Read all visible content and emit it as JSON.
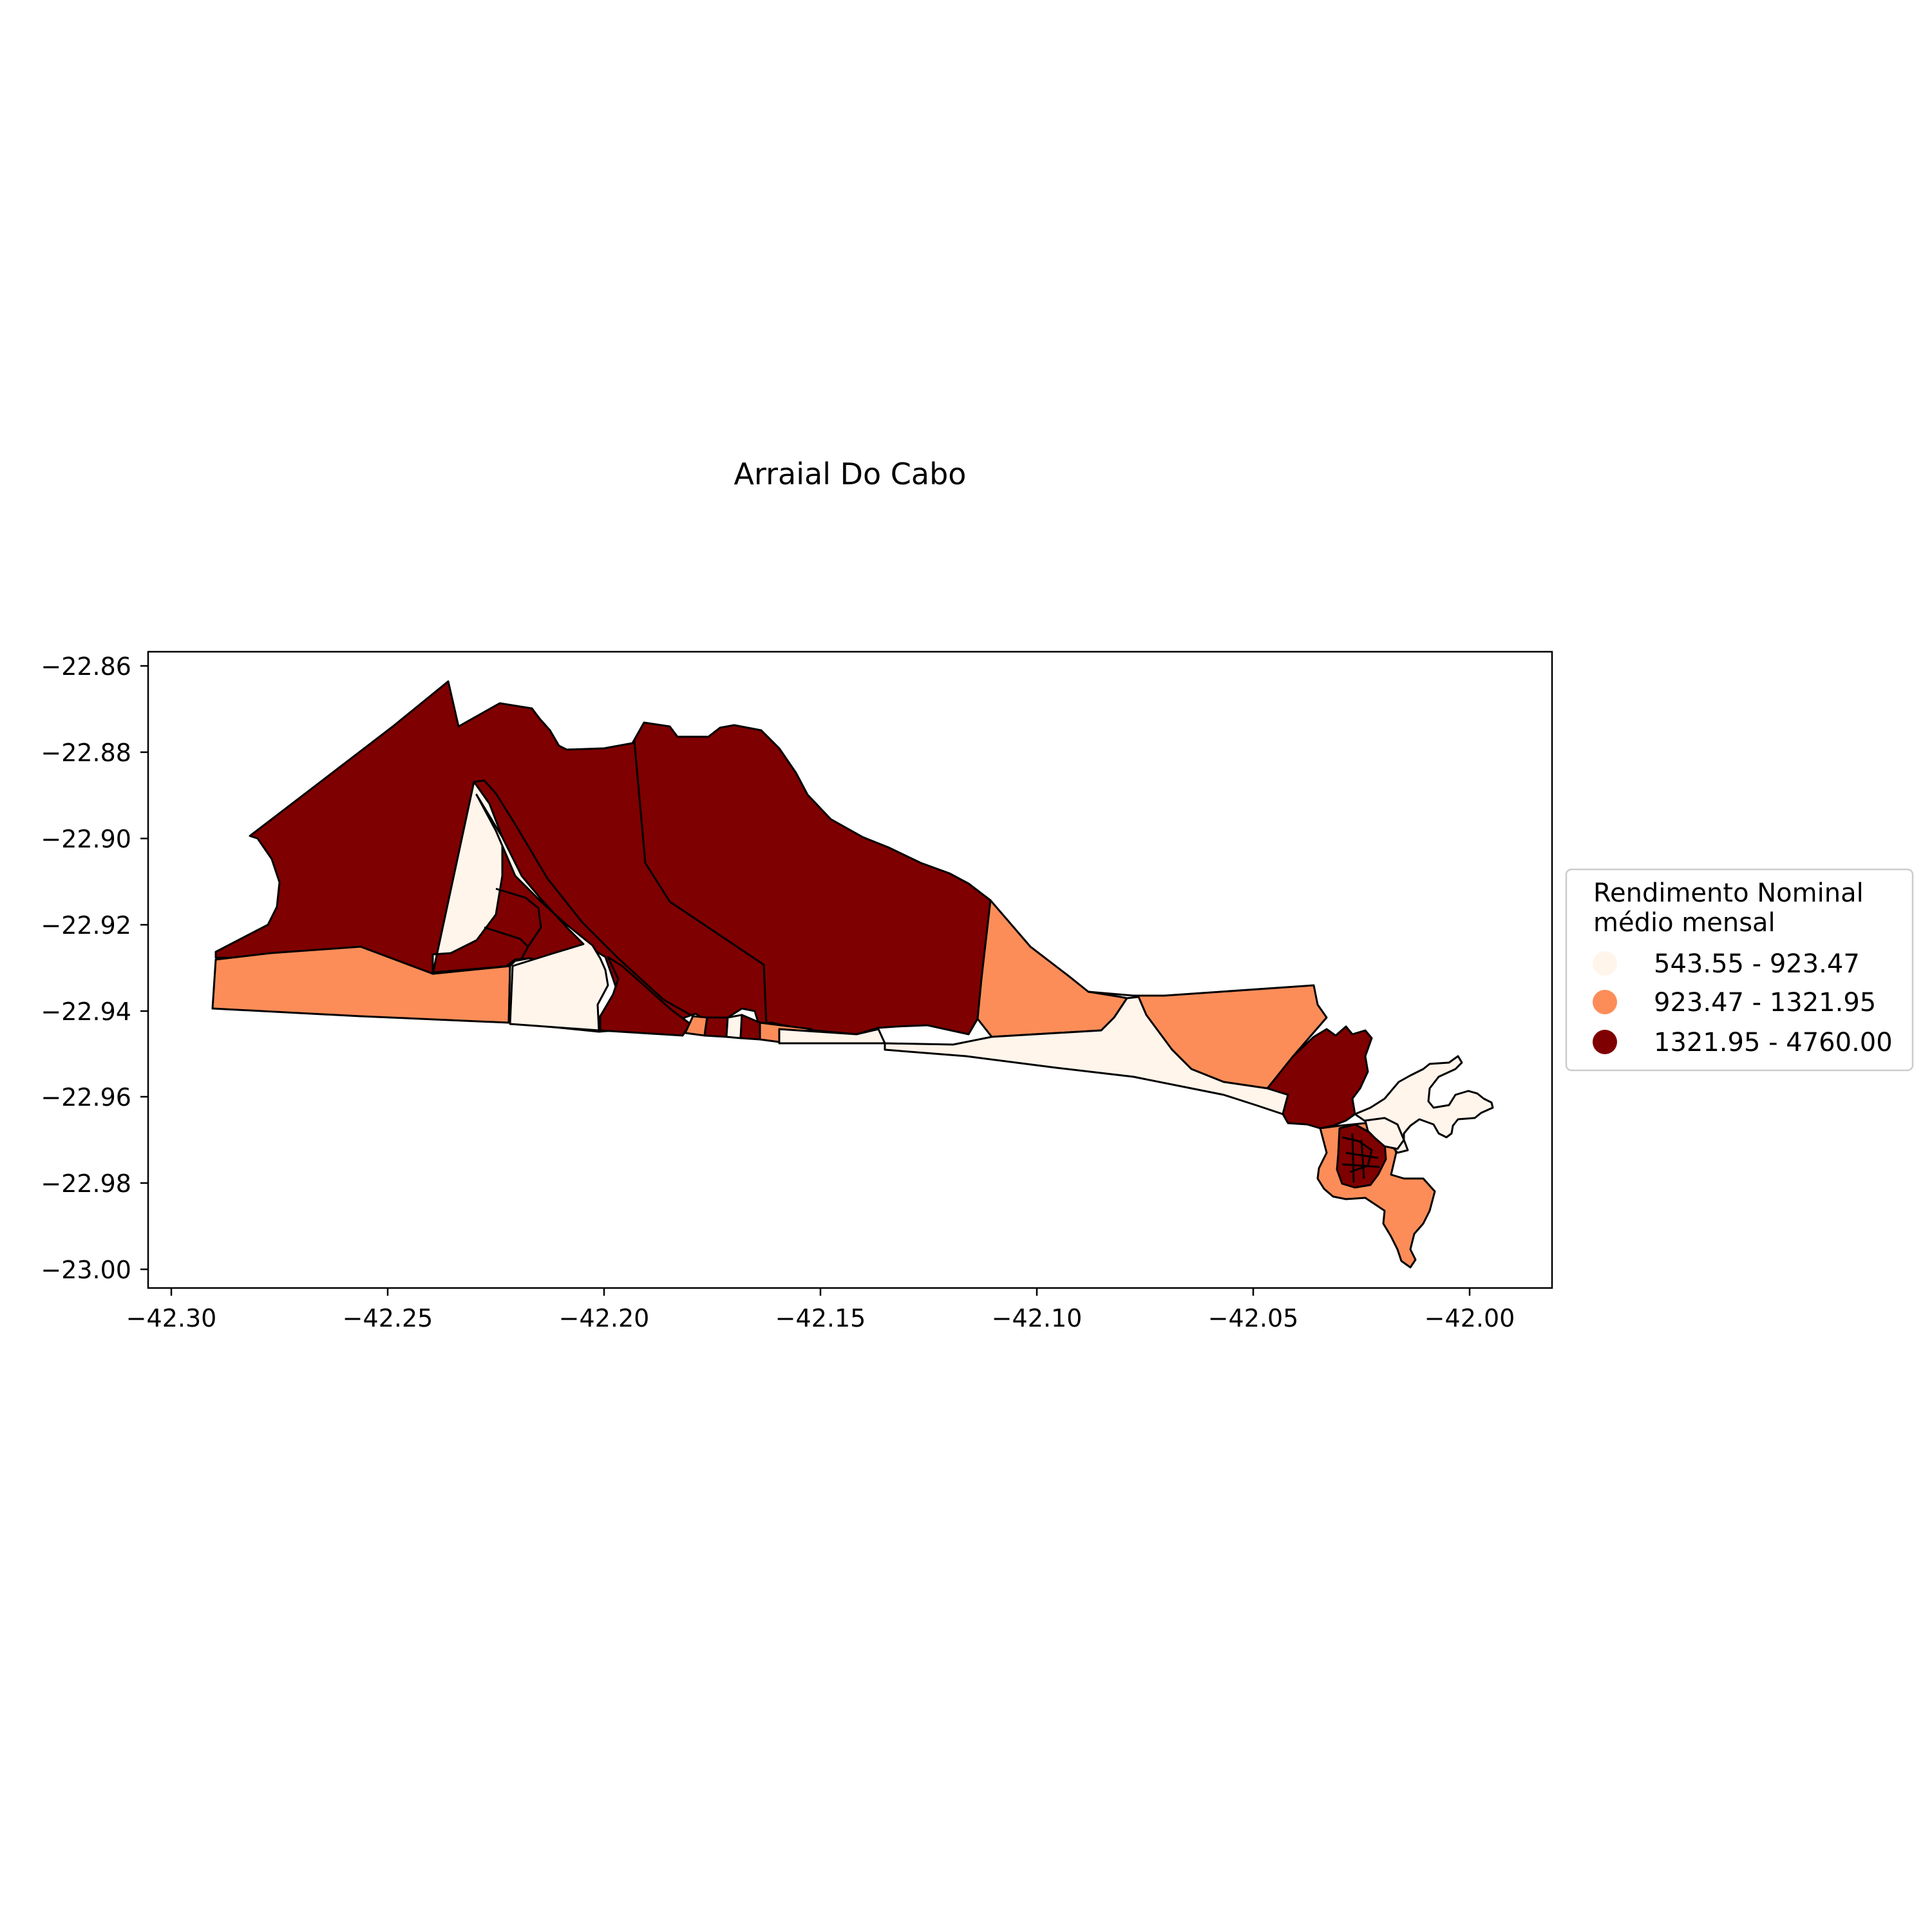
{
  "title": "Arraial Do Cabo",
  "axes": {
    "x_ticks": [
      "−42.30",
      "−42.25",
      "−42.20",
      "−42.15",
      "−42.10",
      "−42.05",
      "−42.00"
    ],
    "y_ticks": [
      "−22.86",
      "−22.88",
      "−22.90",
      "−22.92",
      "−22.94",
      "−22.96",
      "−22.98",
      "−23.00"
    ]
  },
  "legend": {
    "title_line1": "Rendimento Nominal",
    "title_line2": "médio mensal",
    "items": [
      {
        "label": "543.55 - 923.47",
        "color": "#fff5eb"
      },
      {
        "label": "923.47 - 1321.95",
        "color": "#fc8d59"
      },
      {
        "label": "1321.95 - 4760.00",
        "color": "#7f0000"
      }
    ],
    "placement": "center-right, outside axes"
  },
  "colors": {
    "low": "#fff5eb",
    "mid": "#fc8d59",
    "high": "#7f0000",
    "border": "#000000"
  },
  "chart_data": {
    "type": "choropleth",
    "title": "Arraial Do Cabo",
    "variable": "Rendimento Nominal médio mensal",
    "classes": [
      {
        "range": [
          543.55,
          923.47
        ],
        "color": "#fff5eb"
      },
      {
        "range": [
          923.47,
          1321.95
        ],
        "color": "#fc8d59"
      },
      {
        "range": [
          1321.95,
          4760.0
        ],
        "color": "#7f0000"
      }
    ],
    "xlim": [
      -42.31,
      -41.98
    ],
    "ylim": [
      -23.005,
      -22.857
    ]
  }
}
